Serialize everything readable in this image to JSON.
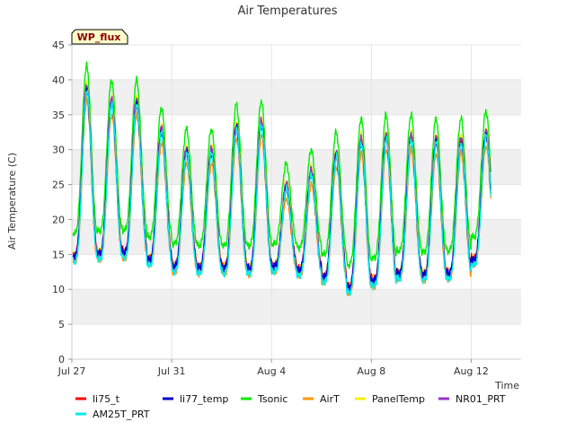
{
  "chart_data": {
    "type": "line",
    "title": "Air Temperatures",
    "xlabel": "Time",
    "ylabel": "Air Temperature (C)",
    "badge": "WP_flux",
    "x_ticks": [
      "Jul 27",
      "Jul 31",
      "Aug 4",
      "Aug 8",
      "Aug 12"
    ],
    "y_ticks": [
      "0",
      "5",
      "10",
      "15",
      "20",
      "25",
      "30",
      "35",
      "40",
      "45"
    ],
    "ylim": [
      0,
      45
    ],
    "xlim_days": [
      0,
      18
    ],
    "grid": true,
    "legend_position": "bottom",
    "daily": [
      {
        "day": "Jul 27",
        "min": 14.5,
        "max": 39.0
      },
      {
        "day": "Jul 28",
        "min": 14.8,
        "max": 37.0
      },
      {
        "day": "Jul 29",
        "min": 15.0,
        "max": 37.0
      },
      {
        "day": "Jul 30",
        "min": 14.0,
        "max": 33.0
      },
      {
        "day": "Jul 31",
        "min": 13.0,
        "max": 30.0
      },
      {
        "day": "Aug 1",
        "min": 12.8,
        "max": 30.0
      },
      {
        "day": "Aug 2",
        "min": 12.8,
        "max": 33.5
      },
      {
        "day": "Aug 3",
        "min": 12.7,
        "max": 34.0
      },
      {
        "day": "Aug 4",
        "min": 13.0,
        "max": 25.0
      },
      {
        "day": "Aug 5",
        "min": 12.5,
        "max": 27.0
      },
      {
        "day": "Aug 6",
        "min": 11.5,
        "max": 29.5
      },
      {
        "day": "Aug 7",
        "min": 10.0,
        "max": 31.5
      },
      {
        "day": "Aug 8",
        "min": 11.0,
        "max": 32.0
      },
      {
        "day": "Aug 9",
        "min": 12.0,
        "max": 32.0
      },
      {
        "day": "Aug 10",
        "min": 11.8,
        "max": 31.5
      },
      {
        "day": "Aug 11",
        "min": 12.0,
        "max": 31.5
      },
      {
        "day": "Aug 12",
        "min": 14.0,
        "max": 32.5
      }
    ],
    "series": [
      {
        "name": "li75_t",
        "color": "#ff0000",
        "offset_min": 0.5,
        "offset_max": 0.0
      },
      {
        "name": "li77_temp",
        "color": "#0000cc",
        "offset_min": 0.3,
        "offset_max": -0.5
      },
      {
        "name": "Tsonic",
        "color": "#00ee00",
        "offset_min": 3.5,
        "offset_max": 3.0
      },
      {
        "name": "AirT",
        "color": "#ff9900",
        "offset_min": -0.5,
        "offset_max": -2.0
      },
      {
        "name": "PanelTemp",
        "color": "#ffee00",
        "offset_min": 0.5,
        "offset_max": 0.5
      },
      {
        "name": "NR01_PRT",
        "color": "#9933cc",
        "offset_min": 0.2,
        "offset_max": 0.2
      },
      {
        "name": "AM25T_PRT",
        "color": "#00eeee",
        "offset_min": -0.5,
        "offset_max": -0.5
      }
    ]
  }
}
